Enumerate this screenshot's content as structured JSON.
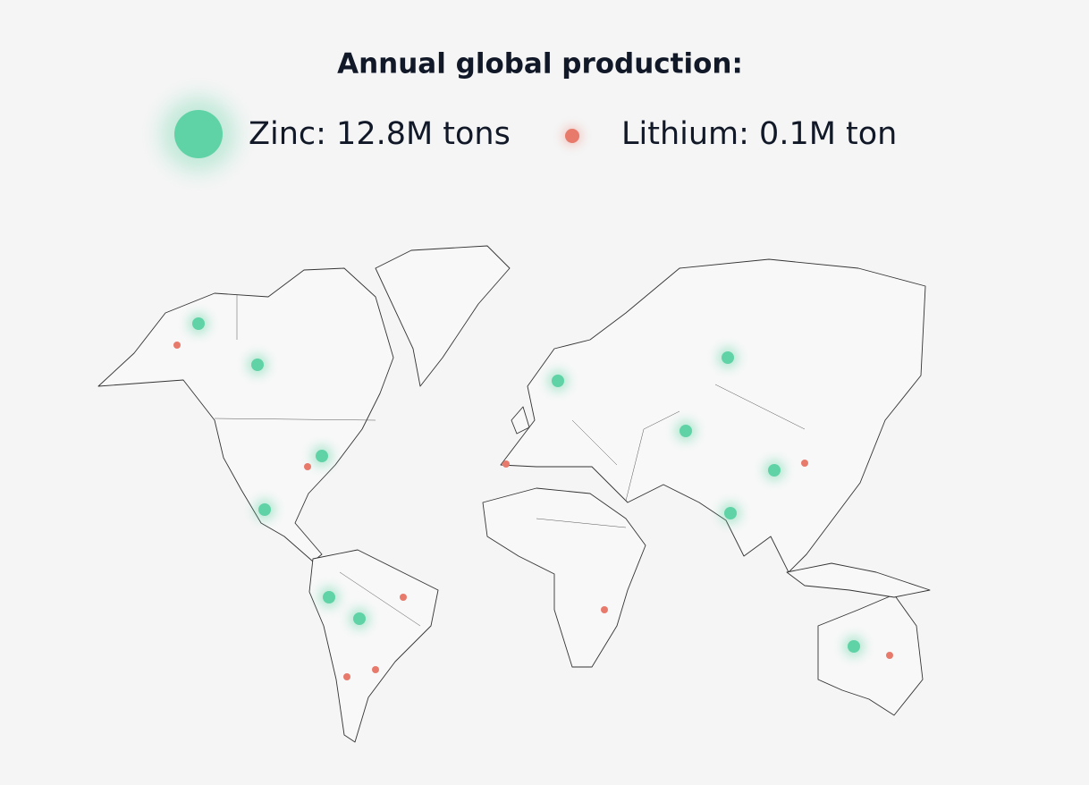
{
  "header": {
    "title": "Annual global production:"
  },
  "legend": {
    "items": [
      {
        "label": "Zinc: 12.8M tons"
      },
      {
        "label": "Lithium: 0.1M ton"
      }
    ]
  }
}
